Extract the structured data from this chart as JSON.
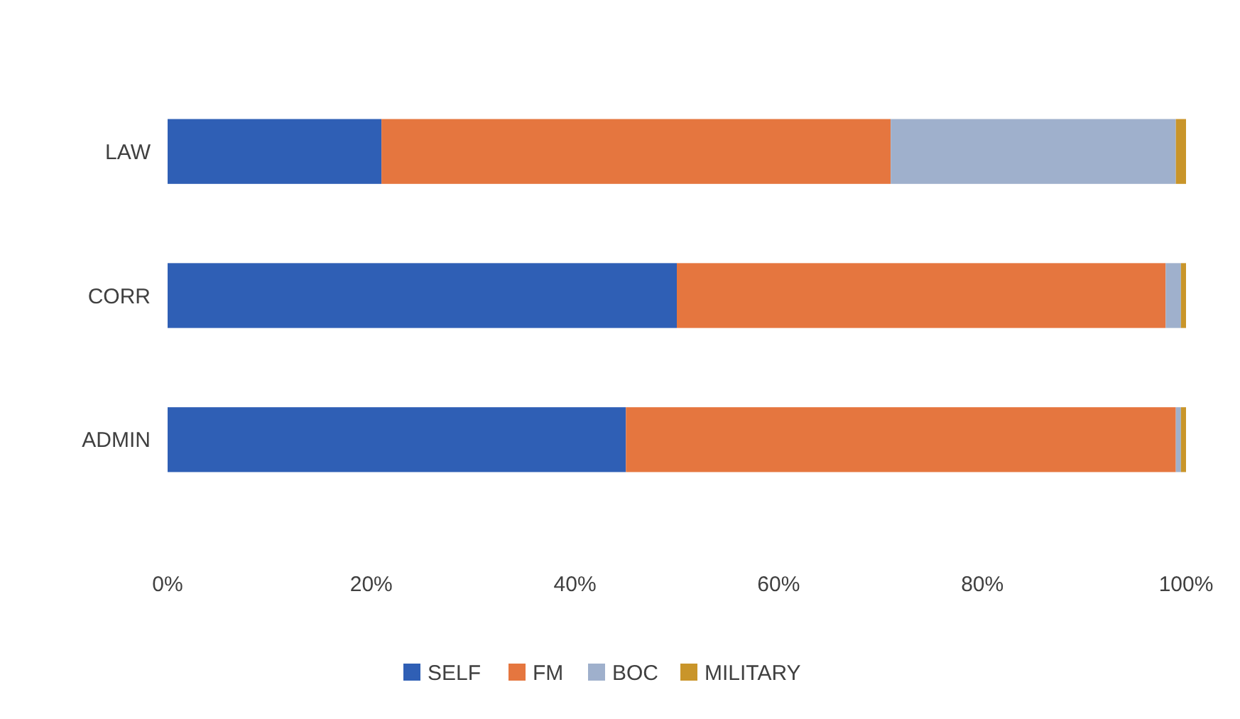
{
  "chart_data": {
    "type": "bar",
    "orientation": "horizontal",
    "stacked": true,
    "categories": [
      "LAW",
      "CORR",
      "ADMIN"
    ],
    "series": [
      {
        "name": "SELF",
        "color": "#2f5fb5",
        "values": [
          21,
          50,
          45
        ]
      },
      {
        "name": "FM",
        "color": "#e5763f",
        "values": [
          50,
          48,
          54
        ]
      },
      {
        "name": "BOC",
        "color": "#9fb0cc",
        "values": [
          28,
          1.5,
          0.5
        ]
      },
      {
        "name": "MILITARY",
        "color": "#c9952a",
        "values": [
          1,
          0.5,
          0.5
        ]
      }
    ],
    "xlim": [
      0,
      100
    ],
    "xticks": [
      {
        "value": 0,
        "label": "0%"
      },
      {
        "value": 20,
        "label": "20%"
      },
      {
        "value": 40,
        "label": "40%"
      },
      {
        "value": 60,
        "label": "60%"
      },
      {
        "value": 80,
        "label": "80%"
      },
      {
        "value": 100,
        "label": "100%"
      }
    ],
    "legend": "bottom",
    "grid": false
  }
}
